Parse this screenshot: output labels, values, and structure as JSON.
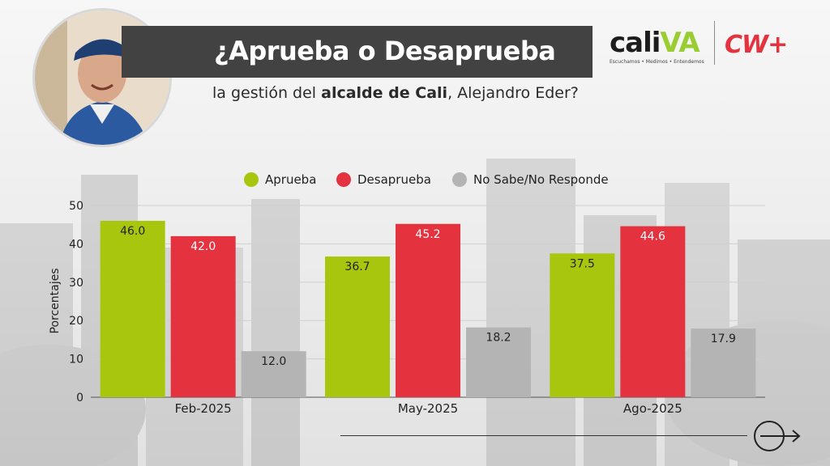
{
  "header": {
    "title": "¿Aprueba o Desaprueba",
    "subtitle_pre": "la gestión del ",
    "subtitle_bold": "alcalde de Cali",
    "subtitle_post": ", Alejandro Eder?"
  },
  "logos": {
    "cali_pre": "cali",
    "cali_accent": "VA",
    "cali_tagline": "Escuchamos • Medimos • Entendemos",
    "cw": "CW+"
  },
  "colors": {
    "aprueba": "#a8c60d",
    "desaprueba": "#e4333f",
    "nosabe": "#b4b4b4",
    "title_bar": "#424242"
  },
  "chart_data": {
    "type": "bar",
    "title": "",
    "xlabel": "",
    "ylabel": "Porcentajes",
    "ylim": [
      0,
      50
    ],
    "yticks": [
      0,
      10,
      20,
      30,
      40,
      50
    ],
    "categories": [
      "Feb-2025",
      "May-2025",
      "Ago-2025"
    ],
    "series": [
      {
        "name": "Aprueba",
        "values": [
          46.0,
          36.7,
          37.5
        ],
        "color": "#a8c60d"
      },
      {
        "name": "Desaprueba",
        "values": [
          42.0,
          45.2,
          44.6
        ],
        "color": "#e4333f"
      },
      {
        "name": "No Sabe/No Responde",
        "values": [
          12.0,
          18.2,
          17.9
        ],
        "color": "#b4b4b4"
      }
    ],
    "data_labels": true,
    "grid": true,
    "legend": "top"
  }
}
